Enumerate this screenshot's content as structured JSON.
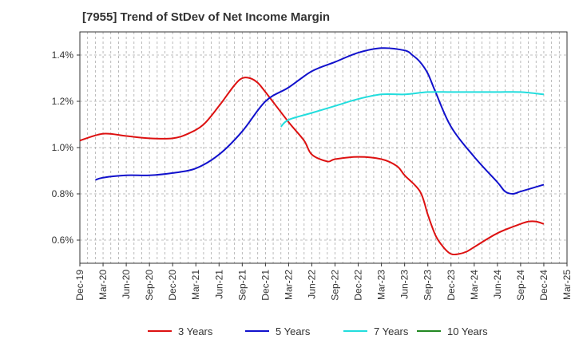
{
  "chart_data": {
    "type": "line",
    "title": "[7955]  Trend of StDev of Net Income Margin",
    "xlabel": "",
    "ylabel": "",
    "x_ticks": [
      "Dec-19",
      "Mar-20",
      "Jun-20",
      "Sep-20",
      "Dec-20",
      "Mar-21",
      "Jun-21",
      "Sep-21",
      "Dec-21",
      "Mar-22",
      "Jun-22",
      "Sep-22",
      "Dec-22",
      "Mar-23",
      "Jun-23",
      "Sep-23",
      "Dec-23",
      "Mar-24",
      "Jun-24",
      "Sep-24",
      "Dec-24",
      "Mar-25"
    ],
    "y_ticks": [
      "0.6%",
      "0.8%",
      "1.0%",
      "1.2%",
      "1.4%"
    ],
    "y_tick_values": [
      0.6,
      0.8,
      1.0,
      1.2,
      1.4
    ],
    "ylim": [
      0.5,
      1.5
    ],
    "grid": "dashed vertical and horizontal",
    "legend_position": "bottom",
    "series": [
      {
        "name": "3 Years",
        "color": "#dd1111",
        "points": [
          [
            "Dec-19",
            1.03
          ],
          [
            "Mar-20",
            1.06
          ],
          [
            "Jun-20",
            1.05
          ],
          [
            "Sep-20",
            1.04
          ],
          [
            "Dec-20",
            1.04
          ],
          [
            "Feb-21",
            1.06
          ],
          [
            "Apr-21",
            1.1
          ],
          [
            "Jun-21",
            1.18
          ],
          [
            "Aug-21",
            1.27
          ],
          [
            "Sep-21",
            1.3
          ],
          [
            "Oct-21",
            1.3
          ],
          [
            "Nov-21",
            1.28
          ],
          [
            "Dec-21",
            1.24
          ],
          [
            "Mar-22",
            1.11
          ],
          [
            "May-22",
            1.03
          ],
          [
            "Jun-22",
            0.97
          ],
          [
            "Aug-22",
            0.94
          ],
          [
            "Sep-22",
            0.95
          ],
          [
            "Dec-22",
            0.96
          ],
          [
            "Mar-23",
            0.95
          ],
          [
            "May-23",
            0.92
          ],
          [
            "Jun-23",
            0.88
          ],
          [
            "Aug-23",
            0.81
          ],
          [
            "Sep-23",
            0.71
          ],
          [
            "Oct-23",
            0.62
          ],
          [
            "Nov-23",
            0.57
          ],
          [
            "Dec-23",
            0.54
          ],
          [
            "Jan-24",
            0.54
          ],
          [
            "Feb-24",
            0.55
          ],
          [
            "Mar-24",
            0.57
          ],
          [
            "Jun-24",
            0.63
          ],
          [
            "Sep-24",
            0.67
          ],
          [
            "Oct-24",
            0.68
          ],
          [
            "Nov-24",
            0.68
          ],
          [
            "Dec-24",
            0.67
          ]
        ]
      },
      {
        "name": "5 Years",
        "color": "#1111cc",
        "points": [
          [
            "Feb-20",
            0.86
          ],
          [
            "Mar-20",
            0.87
          ],
          [
            "Jun-20",
            0.88
          ],
          [
            "Sep-20",
            0.88
          ],
          [
            "Dec-20",
            0.89
          ],
          [
            "Mar-21",
            0.91
          ],
          [
            "Jun-21",
            0.97
          ],
          [
            "Sep-21",
            1.07
          ],
          [
            "Dec-21",
            1.2
          ],
          [
            "Mar-22",
            1.26
          ],
          [
            "Jun-22",
            1.33
          ],
          [
            "Sep-22",
            1.37
          ],
          [
            "Dec-22",
            1.41
          ],
          [
            "Mar-23",
            1.43
          ],
          [
            "Jun-23",
            1.42
          ],
          [
            "Jul-23",
            1.4
          ],
          [
            "Aug-23",
            1.37
          ],
          [
            "Sep-23",
            1.32
          ],
          [
            "Oct-23",
            1.24
          ],
          [
            "Dec-23",
            1.09
          ],
          [
            "Mar-24",
            0.96
          ],
          [
            "Jun-24",
            0.85
          ],
          [
            "Jul-24",
            0.81
          ],
          [
            "Aug-24",
            0.8
          ],
          [
            "Sep-24",
            0.81
          ],
          [
            "Dec-24",
            0.84
          ]
        ]
      },
      {
        "name": "7 Years",
        "color": "#22dddd",
        "points": [
          [
            "Feb-22",
            1.09
          ],
          [
            "Mar-22",
            1.12
          ],
          [
            "Jun-22",
            1.15
          ],
          [
            "Sep-22",
            1.18
          ],
          [
            "Dec-22",
            1.21
          ],
          [
            "Mar-23",
            1.23
          ],
          [
            "Jun-23",
            1.23
          ],
          [
            "Sep-23",
            1.24
          ],
          [
            "Dec-23",
            1.24
          ],
          [
            "Mar-24",
            1.24
          ],
          [
            "Jun-24",
            1.24
          ],
          [
            "Sep-24",
            1.24
          ],
          [
            "Dec-24",
            1.23
          ]
        ]
      },
      {
        "name": "10 Years",
        "color": "#228822",
        "points": []
      }
    ]
  }
}
